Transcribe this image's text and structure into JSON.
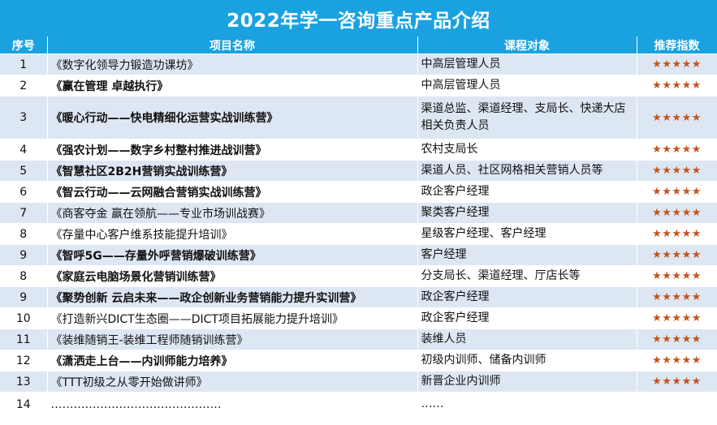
{
  "title": "2022年学一咨询重点产品介绍",
  "headers": {
    "no": "序号",
    "name": "项目名称",
    "audience": "课程对象",
    "rating": "推荐指数"
  },
  "rows": [
    {
      "no": "1",
      "name": "《数字化领导力锻造功课坊》",
      "bold": false,
      "audience": "中高层管理人员",
      "rating": "★★★★★"
    },
    {
      "no": "2",
      "name": "《赢在管理 卓越执行》",
      "bold": true,
      "audience": "中高层管理人员",
      "rating": "★★★★★"
    },
    {
      "no": "3",
      "name": "《暖心行动——快电精细化运营实战训练营》",
      "bold": true,
      "audience": "渠道总监、渠道经理、支局长、快递大店相关负责人员",
      "rating": "★★★★★"
    },
    {
      "no": "4",
      "name": "《强农计划——数字乡村整村推进战训营》",
      "bold": true,
      "audience": "农村支局长",
      "rating": "★★★★★"
    },
    {
      "no": "5",
      "name": "《智慧社区2B2H营销实战训练营》",
      "bold": true,
      "audience": "渠道人员、社区网格相关营销人员等",
      "rating": "★★★★★"
    },
    {
      "no": "6",
      "name": "《智云行动——云网融合营销实战训练营》",
      "bold": true,
      "audience": "政企客户经理",
      "rating": "★★★★★"
    },
    {
      "no": "7",
      "name": "《商客夺金 赢在领航——专业市场训战赛》",
      "bold": false,
      "audience": "聚类客户经理",
      "rating": "★★★★★"
    },
    {
      "no": "8",
      "name": "《存量中心客户维系技能提升培训》",
      "bold": false,
      "audience": "星级客户经理、客户经理",
      "rating": "★★★★★"
    },
    {
      "no": "9",
      "name": "《智呼5G——存量外呼营销爆破训练营》",
      "bold": true,
      "audience": "客户经理",
      "rating": "★★★★★"
    },
    {
      "no": "8",
      "name": "《家庭云电脑场景化营销训练营》",
      "bold": true,
      "audience": "分支局长、渠道经理、厅店长等",
      "rating": "★★★★★"
    },
    {
      "no": "9",
      "name": "《聚势创新 云启未来——政企创新业务营销能力提升实训营》",
      "bold": true,
      "audience": "政企客户经理",
      "rating": "★★★★★"
    },
    {
      "no": "10",
      "name": "《打造新兴DICT生态圈——DICT项目拓展能力提升培训》",
      "bold": false,
      "audience": "政企客户经理",
      "rating": "★★★★★"
    },
    {
      "no": "11",
      "name": "《装维随销王-装维工程师随销训练营》",
      "bold": false,
      "audience": "装维人员",
      "rating": "★★★★★"
    },
    {
      "no": "12",
      "name": "《潇洒走上台——内训师能力培养》",
      "bold": true,
      "audience": "初级内训师、储备内训师",
      "rating": "★★★★★"
    },
    {
      "no": "13",
      "name": "《TTT初级之从零开始做讲师》",
      "bold": false,
      "audience": "新晋企业内训师",
      "rating": "★★★★★"
    },
    {
      "no": "14",
      "name": "………………………………………",
      "bold": false,
      "audience": "……",
      "rating": ""
    }
  ]
}
